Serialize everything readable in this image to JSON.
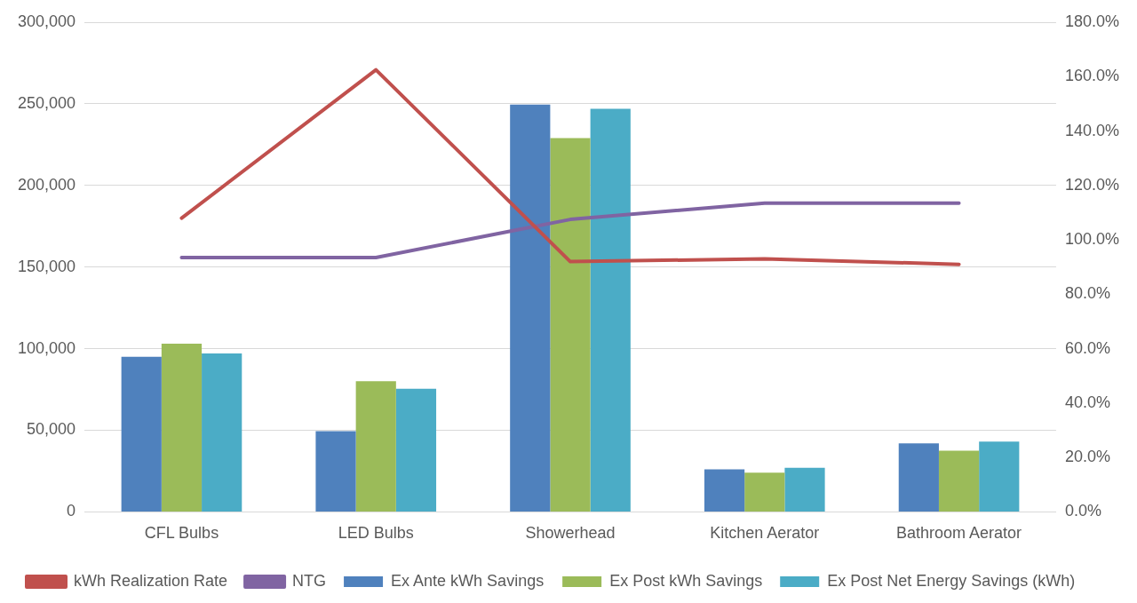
{
  "chart_data": {
    "type": "bar",
    "categories": [
      "CFL Bulbs",
      "LED Bulbs",
      "Showerhead",
      "Kitchen Aerator",
      "Bathroom Aerator"
    ],
    "series": [
      {
        "name": "Ex Ante kWh Savings",
        "color": "#4f81bd",
        "values": [
          95000,
          49500,
          249500,
          26000,
          42000
        ]
      },
      {
        "name": "Ex Post kWh Savings",
        "color": "#9bbb59",
        "values": [
          103000,
          80000,
          229000,
          24000,
          37500
        ]
      },
      {
        "name": "Ex Post Net Energy Savings (kWh)",
        "color": "#4bacc6",
        "values": [
          97000,
          75500,
          247000,
          27000,
          43000
        ]
      },
      {
        "name": "kWh Realization Rate",
        "type": "line",
        "axis": "y2",
        "color": "#c0504d",
        "values": [
          108,
          162.5,
          92,
          93,
          91
        ]
      },
      {
        "name": "NTG",
        "type": "line",
        "axis": "y2",
        "color": "#8064a2",
        "values": [
          93.5,
          93.5,
          107.5,
          113.5,
          113.5
        ]
      }
    ],
    "ylim": [
      0,
      300000
    ],
    "yticks": [
      {
        "value": 0,
        "label": "0"
      },
      {
        "value": 50000,
        "label": "50,000"
      },
      {
        "value": 100000,
        "label": "100,000"
      },
      {
        "value": 150000,
        "label": "150,000"
      },
      {
        "value": 200000,
        "label": "200,000"
      },
      {
        "value": 250000,
        "label": "250,000"
      },
      {
        "value": 300000,
        "label": "300,000"
      }
    ],
    "y2lim": [
      0,
      180
    ],
    "y2ticks": [
      {
        "value": 0,
        "label": "0.0%"
      },
      {
        "value": 20,
        "label": "20.0%"
      },
      {
        "value": 40,
        "label": "40.0%"
      },
      {
        "value": 60,
        "label": "60.0%"
      },
      {
        "value": 80,
        "label": "80.0%"
      },
      {
        "value": 100,
        "label": "100.0%"
      },
      {
        "value": 120,
        "label": "120.0%"
      },
      {
        "value": 140,
        "label": "140.0%"
      },
      {
        "value": 160,
        "label": "160.0%"
      },
      {
        "value": 180,
        "label": "180.0%"
      }
    ],
    "grid": "y",
    "legend": "bottom",
    "marker": "none",
    "line_style": "solid"
  }
}
